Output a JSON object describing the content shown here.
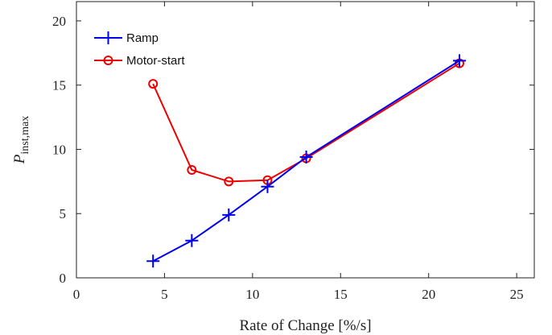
{
  "chart_data": {
    "type": "line",
    "xlabel": "Rate of Change [%/s]",
    "ylabel": {
      "main": "P",
      "subscript": "inst,max"
    },
    "xlim": [
      0,
      26
    ],
    "ylim": [
      0,
      21.5
    ],
    "xticks": [
      0,
      5,
      10,
      15,
      20,
      25
    ],
    "yticks": [
      0,
      5,
      10,
      15,
      20
    ],
    "grid": false,
    "legend_position": "top-left",
    "series": [
      {
        "name": "Ramp",
        "color": "#0000ee",
        "marker": "plus",
        "x": [
          4.35,
          6.55,
          8.65,
          10.85,
          13.05,
          21.75
        ],
        "y": [
          1.3,
          2.9,
          4.9,
          7.1,
          9.4,
          16.9
        ]
      },
      {
        "name": "Motor-start",
        "color": "#ee0000",
        "marker": "circle",
        "x": [
          4.35,
          6.55,
          8.65,
          10.85,
          13.05,
          21.75
        ],
        "y": [
          15.1,
          8.4,
          7.5,
          7.6,
          9.3,
          16.7
        ]
      }
    ]
  }
}
